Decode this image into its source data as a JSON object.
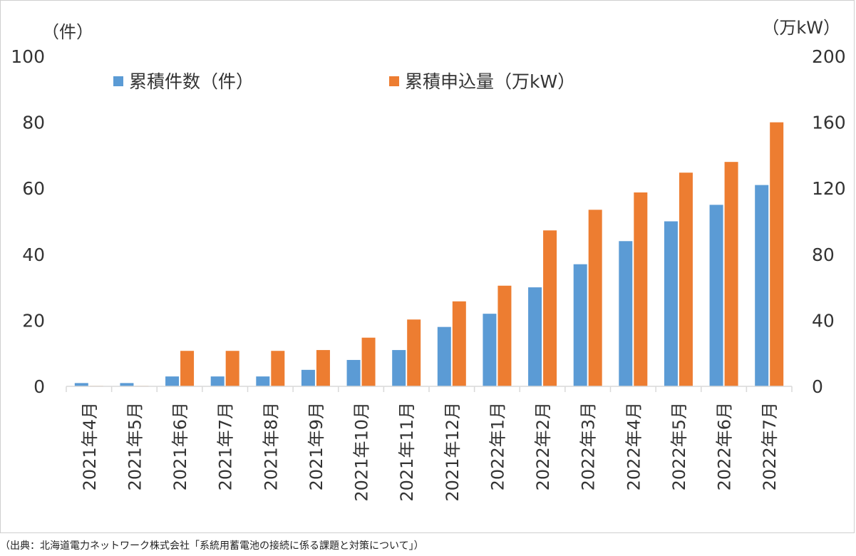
{
  "chart_data": {
    "type": "bar",
    "title": "",
    "left_axis_unit": "（件）",
    "right_axis_unit": "（万kW）",
    "left_ylim": [
      0,
      100
    ],
    "right_ylim": [
      0,
      200
    ],
    "left_ticks": [
      "0",
      "20",
      "40",
      "60",
      "80",
      "100"
    ],
    "right_ticks": [
      "0",
      "40",
      "80",
      "120",
      "160",
      "200"
    ],
    "categories": [
      "2021年4月",
      "2021年5月",
      "2021年6月",
      "2021年7月",
      "2021年8月",
      "2021年9月",
      "2021年10月",
      "2021年11月",
      "2021年12月",
      "2022年1月",
      "2022年2月",
      "2022年3月",
      "2022年4月",
      "2022年5月",
      "2022年6月",
      "2022年7月"
    ],
    "series": [
      {
        "name": "累積件数（件）",
        "axis": "left",
        "color": "#5b9bd5",
        "values": [
          1,
          1,
          3,
          3,
          3,
          5,
          8,
          11,
          18,
          22,
          30,
          37,
          44,
          50,
          55,
          61
        ]
      },
      {
        "name": "累積申込量（万kW）",
        "axis": "right",
        "color": "#ed7d31",
        "values": [
          0.3,
          0.3,
          21.5,
          21.5,
          21.5,
          22,
          29.5,
          40.5,
          51.5,
          61,
          94.5,
          107,
          117.5,
          129.5,
          136,
          160
        ]
      }
    ],
    "grid": false,
    "legend_position": "top"
  },
  "source_note": "（出典：北海道電力ネットワーク株式会社「系統用蓄電池の接続に係る課題と対策について」）"
}
